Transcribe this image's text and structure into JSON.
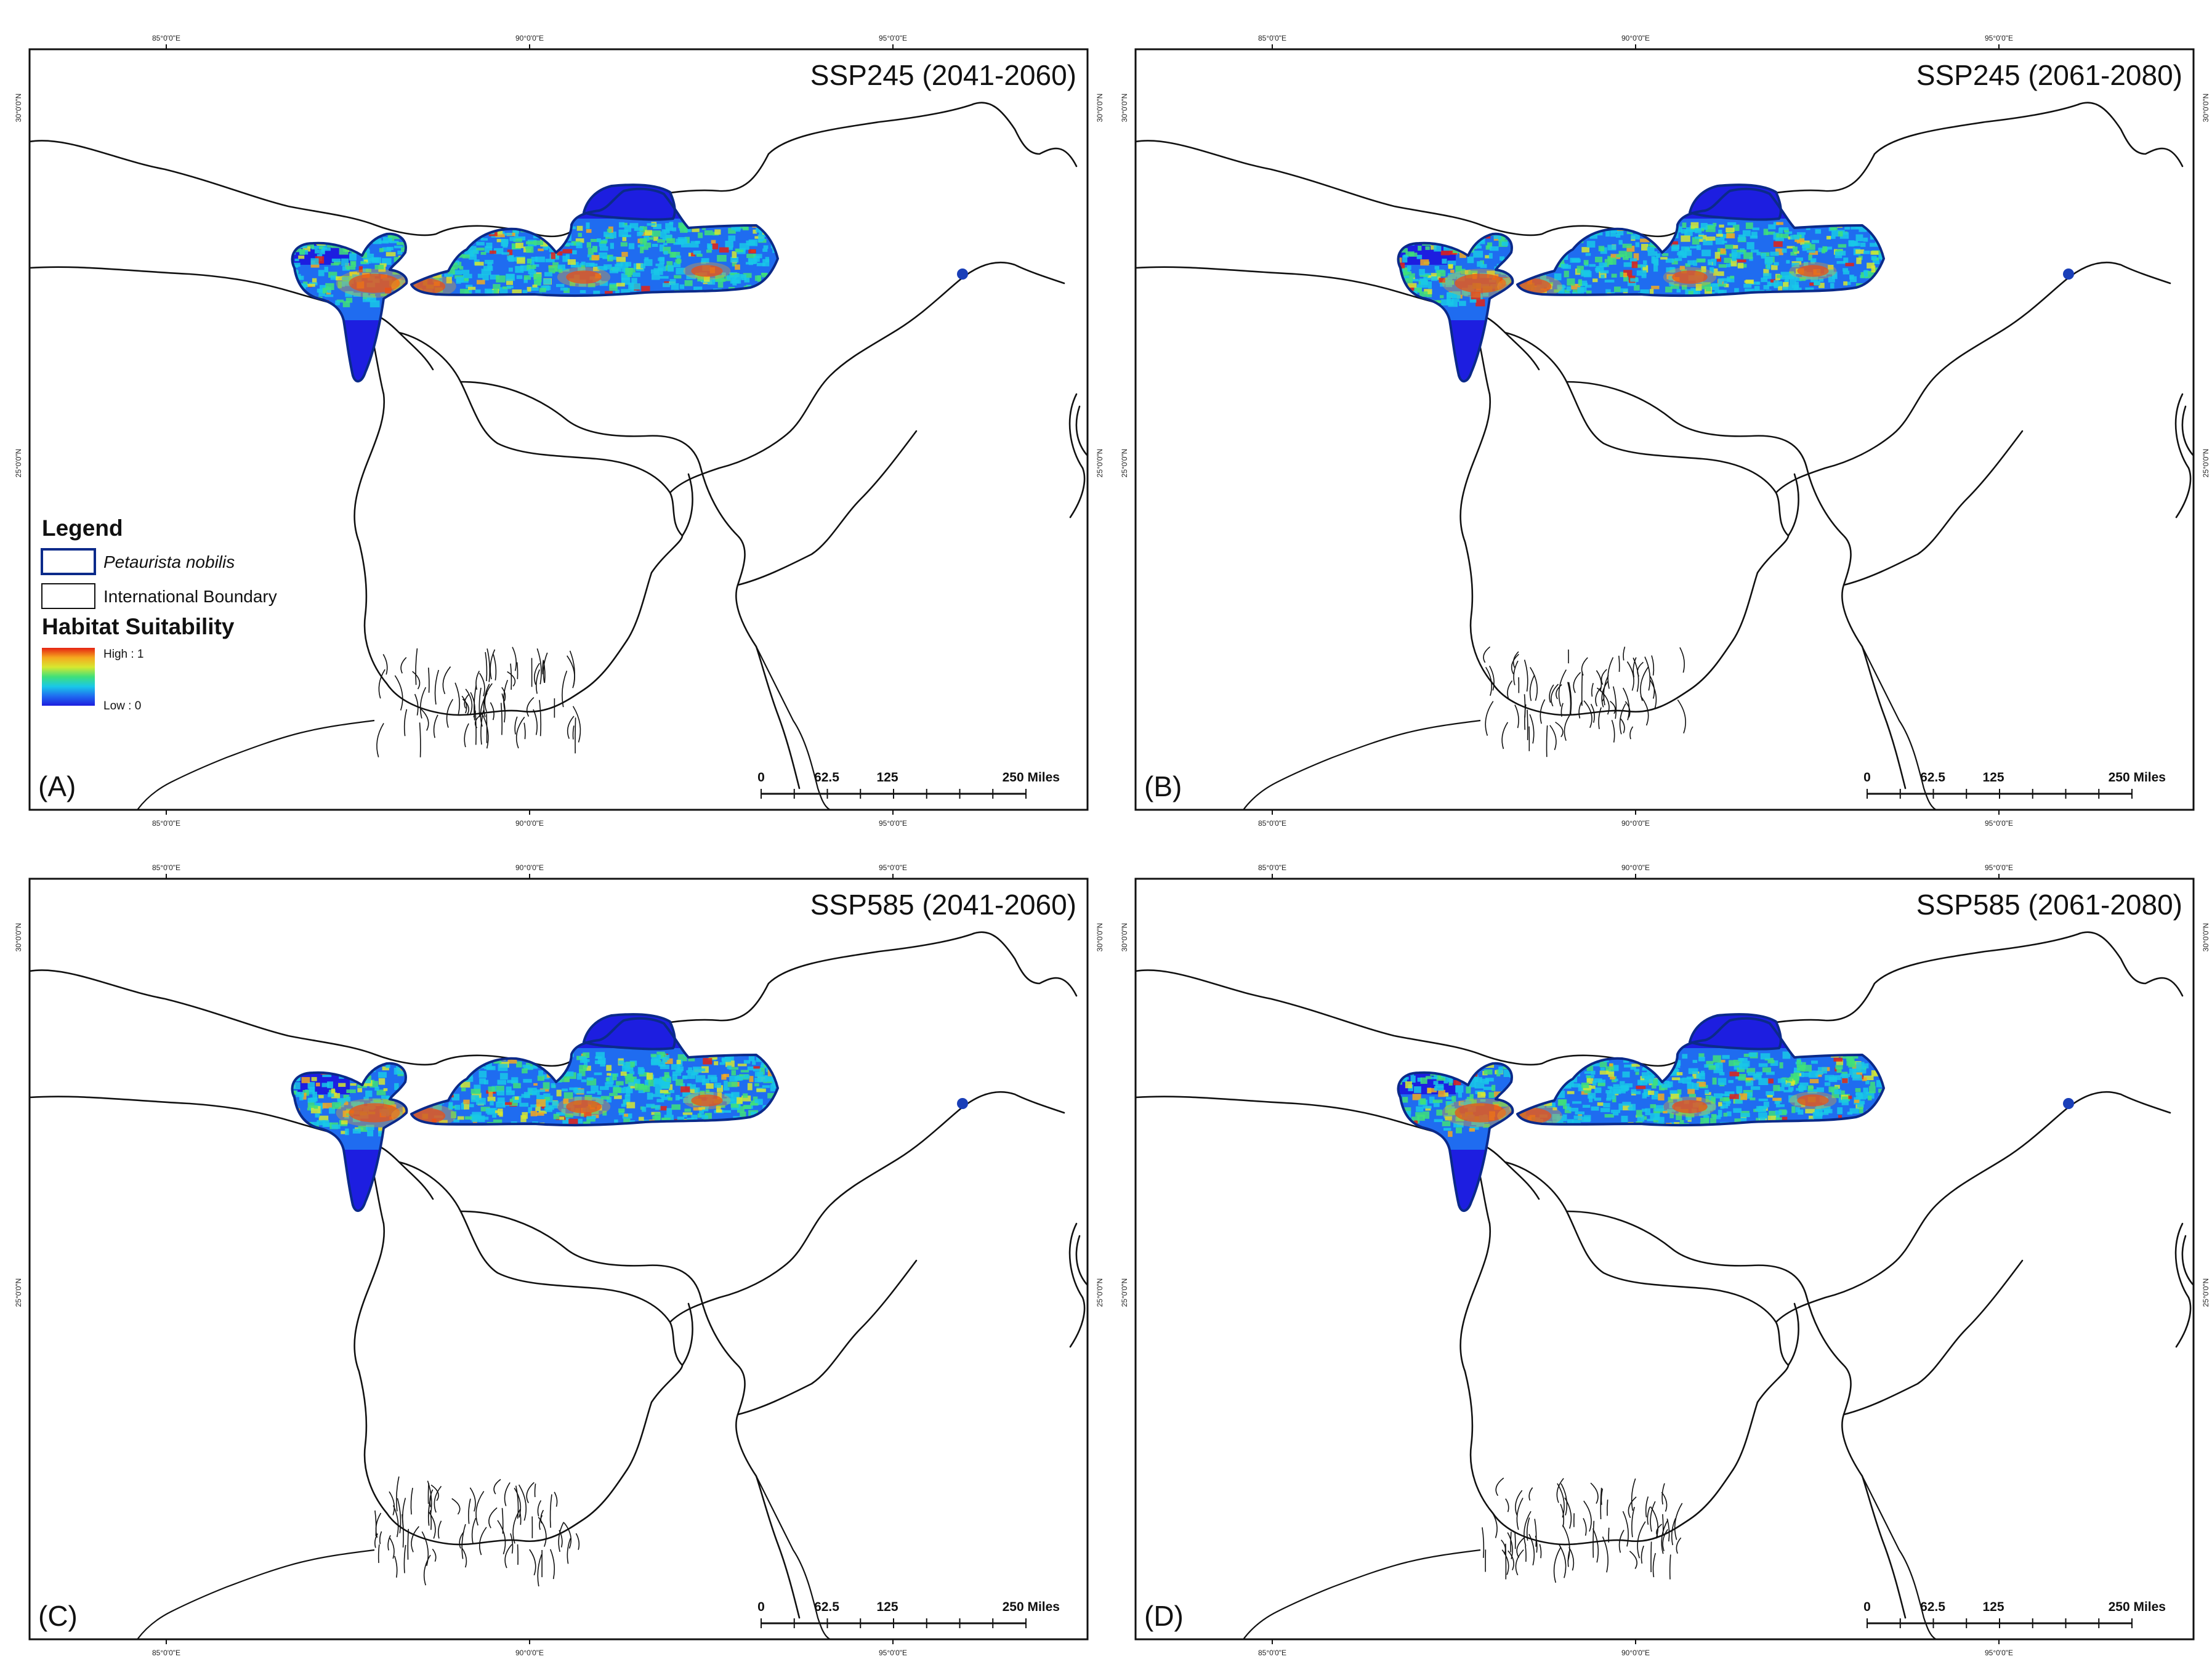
{
  "panels": [
    {
      "id": "A",
      "letter": "(A)",
      "title": "SSP245 (2041-2060)",
      "has_legend": true
    },
    {
      "id": "B",
      "letter": "(B)",
      "title": "SSP245 (2061-2080)",
      "has_legend": false
    },
    {
      "id": "C",
      "letter": "(C)",
      "title": "SSP585 (2041-2060)",
      "has_legend": false
    },
    {
      "id": "D",
      "letter": "(D)",
      "title": "SSP585 (2061-2080)",
      "has_legend": false
    }
  ],
  "graticule": {
    "longitude_labels": [
      "85°0'0\"E",
      "90°0'0\"E",
      "95°0'0\"E"
    ],
    "latitude_labels": [
      "30°0'0\"N",
      "25°0'0\"N"
    ]
  },
  "scale_bar": {
    "ticks": [
      "0",
      "62.5",
      "125",
      "250 Miles"
    ]
  },
  "legend": {
    "title": "Legend",
    "species_label": "Petaurista nobilis",
    "boundary_label": "International Boundary",
    "suitability_title": "Habitat Suitability",
    "high_label": "High : 1",
    "low_label": "Low : 0"
  },
  "colors": {
    "range_outline": "#0b2a8a",
    "occurrence_point": "#1a3fb8",
    "ramp": [
      "#1d1ee0",
      "#1f6cf0",
      "#19c8e8",
      "#3fe07a",
      "#d6e830",
      "#f5a81e",
      "#e52213"
    ]
  }
}
